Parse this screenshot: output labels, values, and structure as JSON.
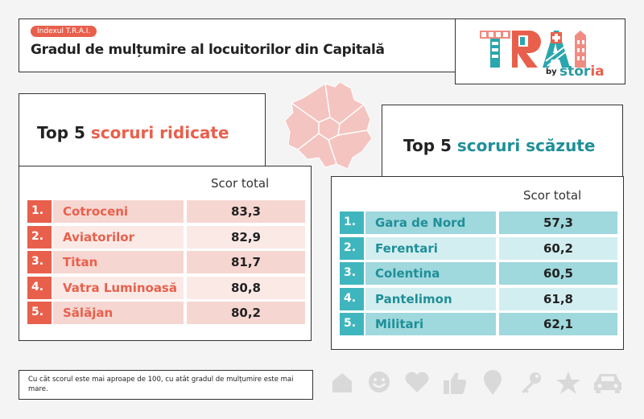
{
  "header": {
    "tag": "Indexul T.R.A.I.",
    "title": "Gradul de mulțumire al locuitorilor din Capitală"
  },
  "logo": {
    "word": "TRAI",
    "by": "by",
    "brand_part1": "stor",
    "brand_part2": "ia"
  },
  "colors": {
    "red_accent": "#e8604c",
    "teal_accent": "#1f8f98",
    "map_fill": "#f4c4c0"
  },
  "high": {
    "title_prefix": "Top 5 ",
    "title_highlight": "scoruri ridicate",
    "column_header": "Scor total",
    "rows": [
      {
        "rank": "1.",
        "name": "Cotroceni",
        "score": "83,3"
      },
      {
        "rank": "2.",
        "name": "Aviatorilor",
        "score": "82,9"
      },
      {
        "rank": "3.",
        "name": "Titan",
        "score": "81,7"
      },
      {
        "rank": "4.",
        "name": "Vatra Luminoasă",
        "score": "80,8"
      },
      {
        "rank": "5.",
        "name": "Sălăjan",
        "score": "80,2"
      }
    ]
  },
  "low": {
    "title_prefix": "Top 5 ",
    "title_highlight": "scoruri scăzute",
    "column_header": "Scor total",
    "rows": [
      {
        "rank": "1.",
        "name": "Gara de Nord",
        "score": "57,3"
      },
      {
        "rank": "2.",
        "name": "Ferentari",
        "score": "60,2"
      },
      {
        "rank": "3.",
        "name": "Colentina",
        "score": "60,5"
      },
      {
        "rank": "4.",
        "name": "Pantelimon",
        "score": "61,8"
      },
      {
        "rank": "5.",
        "name": "Militari",
        "score": "62,1"
      }
    ]
  },
  "chart_data": [
    {
      "type": "table",
      "title": "Top 5 scoruri ridicate",
      "columns": [
        "",
        "",
        "Scor total"
      ],
      "rows": [
        [
          "1.",
          "Cotroceni",
          83.3
        ],
        [
          "2.",
          "Aviatorilor",
          82.9
        ],
        [
          "3.",
          "Titan",
          81.7
        ],
        [
          "4.",
          "Vatra Luminoasă",
          80.8
        ],
        [
          "5.",
          "Sălăjan",
          80.2
        ]
      ]
    },
    {
      "type": "table",
      "title": "Top 5 scoruri scăzute",
      "columns": [
        "",
        "",
        "Scor total"
      ],
      "rows": [
        [
          "1.",
          "Gara de Nord",
          57.3
        ],
        [
          "2.",
          "Ferentari",
          60.2
        ],
        [
          "3.",
          "Colentina",
          60.5
        ],
        [
          "4.",
          "Pantelimon",
          61.8
        ],
        [
          "5.",
          "Militari",
          62.1
        ]
      ]
    }
  ],
  "footnote": "Cu cât scorul este mai aproape de 100, cu atât gradul de mulțumire este mai mare.",
  "icons": [
    "house-icon",
    "smiley-icon",
    "heart-icon",
    "thumbs-up-icon",
    "location-pin-icon",
    "key-icon",
    "star-icon",
    "car-icon"
  ]
}
